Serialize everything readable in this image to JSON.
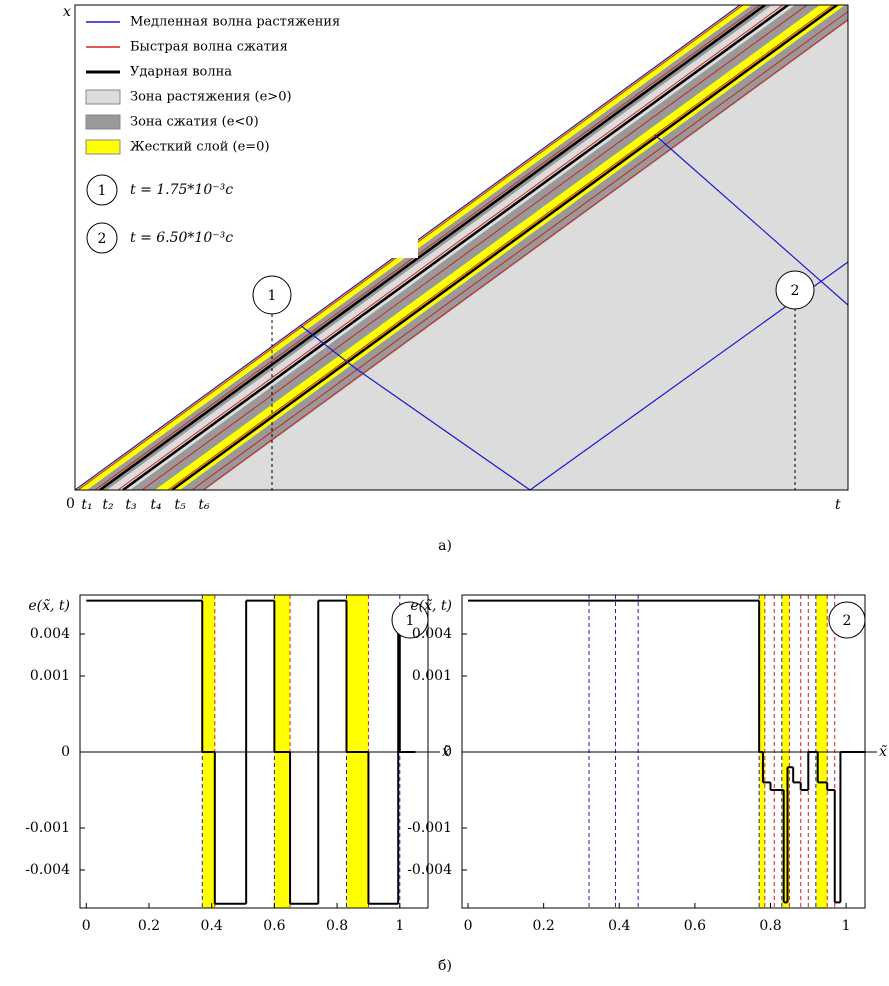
{
  "figure_a": {
    "axis_x": "x",
    "axis_t": "t",
    "origin": "0",
    "t_labels": [
      "t₁",
      "t₂",
      "t₃",
      "t₄",
      "t₅",
      "t₆"
    ],
    "legend": [
      "Медленная волна растяжения",
      "Быстрая волна сжатия",
      "Ударная волна",
      "Зона растяжения (e>0)",
      "Зона сжатия (e<0)",
      "Жесткий слой (e=0)"
    ],
    "markers": [
      {
        "label": "1",
        "text": "t = 1.75*10⁻³c"
      },
      {
        "label": "2",
        "text": "t = 6.50*10⁻³c"
      }
    ],
    "caption": "а)"
  },
  "caption_b": "б)",
  "chart_data": [
    {
      "type": "line",
      "marker": "1",
      "ylabel": "e(x̃, t)",
      "xlabel": "x̃",
      "xlim": [
        -0.02,
        1.09
      ],
      "xticks": [
        0,
        0.2,
        0.4,
        0.6,
        0.8,
        1
      ],
      "ylim": [
        -0.0067,
        0.0068
      ],
      "yticks": [
        0.004,
        0.001,
        0,
        -0.001,
        -0.004
      ],
      "color": "#000000",
      "band_color": "#ffff00",
      "x": [
        0,
        0.37,
        0.41,
        0.51,
        0.6,
        0.65,
        0.74,
        0.83,
        0.9,
        0.995,
        1.0,
        1.05
      ],
      "values": [
        0.0064,
        0,
        -0.0064,
        0.0064,
        0,
        -0.0064,
        0.0064,
        0,
        -0.0064,
        0.0045,
        0,
        0
      ],
      "bands": [
        [
          0.37,
          0.41
        ],
        [
          0.6,
          0.65
        ],
        [
          0.83,
          0.9
        ]
      ],
      "blue_dashed_x": [
        0.37,
        0.6,
        0.83,
        1.0
      ],
      "red_dashed_x": [
        0.41,
        0.65,
        0.9
      ]
    },
    {
      "type": "line",
      "marker": "2",
      "ylabel": "e(x̃, t)",
      "xlabel": "x̃",
      "xlim": [
        -0.016,
        1.05
      ],
      "xticks": [
        0,
        0.2,
        0.4,
        0.6,
        0.8,
        1
      ],
      "ylim": [
        -0.0067,
        0.0068
      ],
      "yticks": [
        0.004,
        0.001,
        0,
        -0.001,
        -0.004
      ],
      "color": "#000000",
      "band_color": "#ffff00",
      "x": [
        0,
        0.77,
        0.78,
        0.8,
        0.835,
        0.845,
        0.86,
        0.88,
        0.9,
        0.925,
        0.95,
        0.97,
        0.985,
        1.05
      ],
      "values": [
        0.0064,
        0,
        -0.0004,
        -0.0005,
        -0.0063,
        -0.0002,
        -0.0004,
        -0.0005,
        0,
        -0.0004,
        -0.0005,
        -0.0063,
        0,
        0
      ],
      "bands": [
        [
          0.77,
          0.785
        ],
        [
          0.83,
          0.85
        ],
        [
          0.92,
          0.95
        ]
      ],
      "blue_dashed_x": [
        0.32,
        0.39,
        0.45,
        0.77,
        0.83,
        0.92
      ],
      "red_dashed_x": [
        0.785,
        0.81,
        0.85,
        0.88,
        0.9,
        0.95,
        0.97
      ]
    }
  ]
}
